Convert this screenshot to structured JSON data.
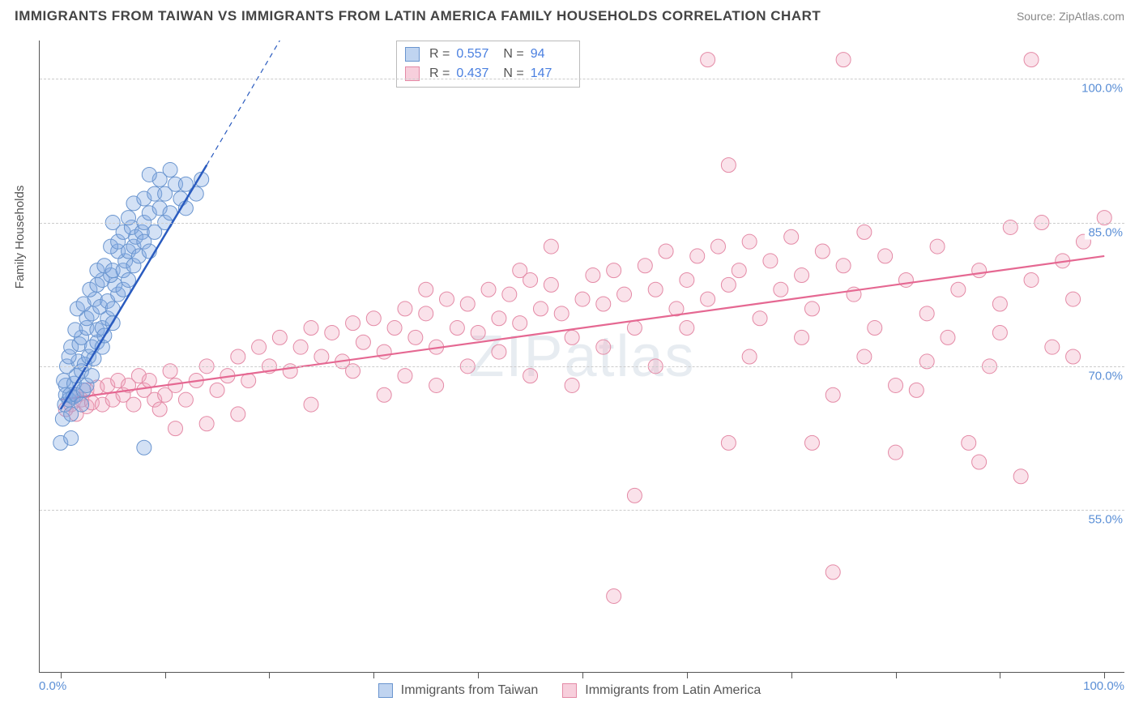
{
  "header": {
    "title": "IMMIGRANTS FROM TAIWAN VS IMMIGRANTS FROM LATIN AMERICA FAMILY HOUSEHOLDS CORRELATION CHART",
    "source_prefix": "Source: ",
    "source_name": "ZipAtlas.com"
  },
  "watermark": "ZIPatlas",
  "chart": {
    "type": "scatter-correlation",
    "y_axis_title": "Family Households",
    "x_domain": [
      -2,
      102
    ],
    "y_domain": [
      38,
      104
    ],
    "x_ticks": [
      0,
      10,
      20,
      30,
      40,
      50,
      60,
      70,
      80,
      90,
      100
    ],
    "x_tick_labels": {
      "min": "0.0%",
      "max": "100.0%"
    },
    "y_gridlines": [
      55.0,
      70.0,
      85.0,
      100.0
    ],
    "y_tick_labels": [
      "55.0%",
      "70.0%",
      "85.0%",
      "100.0%"
    ],
    "background_color": "#ffffff",
    "grid_color": "#cccccc",
    "axis_color": "#555555",
    "marker_radius": 9,
    "series": [
      {
        "id": "taiwan",
        "label": "Immigrants from Taiwan",
        "color_fill": "rgba(130,170,225,0.35)",
        "color_stroke": "#6a95cf",
        "trend_color": "#2a5bbf",
        "R": "0.557",
        "N": "94",
        "trend_solid_from": [
          0,
          65.5
        ],
        "trend_solid_to": [
          14,
          91
        ],
        "trend_dash_from": [
          14,
          91
        ],
        "trend_dash_to": [
          21,
          104
        ],
        "points": [
          [
            0.0,
            62.0
          ],
          [
            0.2,
            64.5
          ],
          [
            0.4,
            66.0
          ],
          [
            0.5,
            67.0
          ],
          [
            0.5,
            68.0
          ],
          [
            0.8,
            66.5
          ],
          [
            0.9,
            67.0
          ],
          [
            0.3,
            68.5
          ],
          [
            1.0,
            65.0
          ],
          [
            1.2,
            66.8
          ],
          [
            1.3,
            68.2
          ],
          [
            1.5,
            67.0
          ],
          [
            1.5,
            69.0
          ],
          [
            0.6,
            70.0
          ],
          [
            1.7,
            70.5
          ],
          [
            0.8,
            71.0
          ],
          [
            1.0,
            72.0
          ],
          [
            2.0,
            66.0
          ],
          [
            2.2,
            67.5
          ],
          [
            2.0,
            69.5
          ],
          [
            2.3,
            70.2
          ],
          [
            2.5,
            68.0
          ],
          [
            2.7,
            71.0
          ],
          [
            1.8,
            72.3
          ],
          [
            2.0,
            73.0
          ],
          [
            1.4,
            73.8
          ],
          [
            2.5,
            74.0
          ],
          [
            3.0,
            69.0
          ],
          [
            3.0,
            72.0
          ],
          [
            3.2,
            70.8
          ],
          [
            3.5,
            72.5
          ],
          [
            3.5,
            73.8
          ],
          [
            2.5,
            75.0
          ],
          [
            3.0,
            75.5
          ],
          [
            1.6,
            76.0
          ],
          [
            2.2,
            76.5
          ],
          [
            4.0,
            72.0
          ],
          [
            4.0,
            74.0
          ],
          [
            4.2,
            73.2
          ],
          [
            4.5,
            75.0
          ],
          [
            3.3,
            77.0
          ],
          [
            3.8,
            76.2
          ],
          [
            4.5,
            76.8
          ],
          [
            2.8,
            78.0
          ],
          [
            3.5,
            78.5
          ],
          [
            4.0,
            79.0
          ],
          [
            5.0,
            74.5
          ],
          [
            5.0,
            76.0
          ],
          [
            5.5,
            77.5
          ],
          [
            5.2,
            78.5
          ],
          [
            4.8,
            79.5
          ],
          [
            3.5,
            80.0
          ],
          [
            4.2,
            80.5
          ],
          [
            5.0,
            80.0
          ],
          [
            6.0,
            78.0
          ],
          [
            6.0,
            80.0
          ],
          [
            6.5,
            79.0
          ],
          [
            6.2,
            81.0
          ],
          [
            5.5,
            82.0
          ],
          [
            4.8,
            82.5
          ],
          [
            5.5,
            83.0
          ],
          [
            6.5,
            82.0
          ],
          [
            7.0,
            80.5
          ],
          [
            7.0,
            82.5
          ],
          [
            7.5,
            81.5
          ],
          [
            7.2,
            83.5
          ],
          [
            6.0,
            84.0
          ],
          [
            6.8,
            84.5
          ],
          [
            7.8,
            84.0
          ],
          [
            5.0,
            85.0
          ],
          [
            6.5,
            85.5
          ],
          [
            8.0,
            83.0
          ],
          [
            8.5,
            82.0
          ],
          [
            8.0,
            85.0
          ],
          [
            8.5,
            86.0
          ],
          [
            9.0,
            84.0
          ],
          [
            9.5,
            86.5
          ],
          [
            7.0,
            87.0
          ],
          [
            8.0,
            87.5
          ],
          [
            9.0,
            88.0
          ],
          [
            10.0,
            85.0
          ],
          [
            10.5,
            86.0
          ],
          [
            10.0,
            88.0
          ],
          [
            11.0,
            89.0
          ],
          [
            9.5,
            89.5
          ],
          [
            8.5,
            90.0
          ],
          [
            11.5,
            87.5
          ],
          [
            12.0,
            86.5
          ],
          [
            12.0,
            89.0
          ],
          [
            13.0,
            88.0
          ],
          [
            13.5,
            89.5
          ],
          [
            10.5,
            90.5
          ],
          [
            8.0,
            61.5
          ],
          [
            1.0,
            62.5
          ]
        ]
      },
      {
        "id": "latin",
        "label": "Immigrants from Latin America",
        "color_fill": "rgba(240,160,185,0.30)",
        "color_stroke": "#e48aa6",
        "trend_color": "#e56892",
        "R": "0.437",
        "N": "147",
        "trend_solid_from": [
          0,
          66.5
        ],
        "trend_solid_to": [
          100,
          81.5
        ],
        "points": [
          [
            0.5,
            65.5
          ],
          [
            1.0,
            66.0
          ],
          [
            1.5,
            65.0
          ],
          [
            2.0,
            66.5
          ],
          [
            2.5,
            65.8
          ],
          [
            3.0,
            66.2
          ],
          [
            1.5,
            67.0
          ],
          [
            2.5,
            67.5
          ],
          [
            4.0,
            66.0
          ],
          [
            3.5,
            67.8
          ],
          [
            5.0,
            66.5
          ],
          [
            4.5,
            68.0
          ],
          [
            6.0,
            67.0
          ],
          [
            5.5,
            68.5
          ],
          [
            7.0,
            66.0
          ],
          [
            6.5,
            68.0
          ],
          [
            8.0,
            67.5
          ],
          [
            7.5,
            69.0
          ],
          [
            9.0,
            66.5
          ],
          [
            8.5,
            68.5
          ],
          [
            10.0,
            67.0
          ],
          [
            9.5,
            65.5
          ],
          [
            11.0,
            68.0
          ],
          [
            10.5,
            69.5
          ],
          [
            12.0,
            66.5
          ],
          [
            13.0,
            68.5
          ],
          [
            14.0,
            70.0
          ],
          [
            15.0,
            67.5
          ],
          [
            16.0,
            69.0
          ],
          [
            17.0,
            71.0
          ],
          [
            18.0,
            68.5
          ],
          [
            19.0,
            72.0
          ],
          [
            20.0,
            70.0
          ],
          [
            21.0,
            73.0
          ],
          [
            22.0,
            69.5
          ],
          [
            23.0,
            72.0
          ],
          [
            24.0,
            74.0
          ],
          [
            25.0,
            71.0
          ],
          [
            26.0,
            73.5
          ],
          [
            27.0,
            70.5
          ],
          [
            28.0,
            74.5
          ],
          [
            29.0,
            72.5
          ],
          [
            30.0,
            75.0
          ],
          [
            31.0,
            71.5
          ],
          [
            32.0,
            74.0
          ],
          [
            33.0,
            76.0
          ],
          [
            34.0,
            73.0
          ],
          [
            35.0,
            75.5
          ],
          [
            36.0,
            72.0
          ],
          [
            37.0,
            77.0
          ],
          [
            38.0,
            74.0
          ],
          [
            39.0,
            76.5
          ],
          [
            40.0,
            73.5
          ],
          [
            41.0,
            78.0
          ],
          [
            42.0,
            75.0
          ],
          [
            43.0,
            77.5
          ],
          [
            44.0,
            74.5
          ],
          [
            45.0,
            79.0
          ],
          [
            46.0,
            76.0
          ],
          [
            47.0,
            78.5
          ],
          [
            48.0,
            75.5
          ],
          [
            49.0,
            68.0
          ],
          [
            50.0,
            77.0
          ],
          [
            51.0,
            79.5
          ],
          [
            52.0,
            76.5
          ],
          [
            53.0,
            80.0
          ],
          [
            54.0,
            77.5
          ],
          [
            55.0,
            74.0
          ],
          [
            56.0,
            80.5
          ],
          [
            57.0,
            78.0
          ],
          [
            58.0,
            82.0
          ],
          [
            59.0,
            76.0
          ],
          [
            60.0,
            79.0
          ],
          [
            61.0,
            81.5
          ],
          [
            62.0,
            77.0
          ],
          [
            63.0,
            82.5
          ],
          [
            64.0,
            78.5
          ],
          [
            65.0,
            80.0
          ],
          [
            66.0,
            83.0
          ],
          [
            67.0,
            75.0
          ],
          [
            68.0,
            81.0
          ],
          [
            69.0,
            78.0
          ],
          [
            70.0,
            83.5
          ],
          [
            71.0,
            79.5
          ],
          [
            72.0,
            76.0
          ],
          [
            73.0,
            82.0
          ],
          [
            74.0,
            67.0
          ],
          [
            75.0,
            80.5
          ],
          [
            76.0,
            77.5
          ],
          [
            77.0,
            84.0
          ],
          [
            78.0,
            74.0
          ],
          [
            79.0,
            81.5
          ],
          [
            80.0,
            68.0
          ],
          [
            81.0,
            79.0
          ],
          [
            82.0,
            67.5
          ],
          [
            83.0,
            75.5
          ],
          [
            84.0,
            82.5
          ],
          [
            85.0,
            73.0
          ],
          [
            86.0,
            78.0
          ],
          [
            87.0,
            62.0
          ],
          [
            88.0,
            80.0
          ],
          [
            89.0,
            70.0
          ],
          [
            90.0,
            76.5
          ],
          [
            91.0,
            84.5
          ],
          [
            92.0,
            58.5
          ],
          [
            93.0,
            79.0
          ],
          [
            94.0,
            85.0
          ],
          [
            95.0,
            72.0
          ],
          [
            96.0,
            81.0
          ],
          [
            97.0,
            77.0
          ],
          [
            98.0,
            83.0
          ],
          [
            100.0,
            85.5
          ],
          [
            62.0,
            102.0
          ],
          [
            75.0,
            102.0
          ],
          [
            93.0,
            102.0
          ],
          [
            64.0,
            91.0
          ],
          [
            47.0,
            82.5
          ],
          [
            55.0,
            56.5
          ],
          [
            53.0,
            46.0
          ],
          [
            74.0,
            48.5
          ],
          [
            64.0,
            62.0
          ],
          [
            72.0,
            62.0
          ],
          [
            80.0,
            61.0
          ],
          [
            88.0,
            60.0
          ],
          [
            11.0,
            63.5
          ],
          [
            14.0,
            64.0
          ],
          [
            17.0,
            65.0
          ],
          [
            24.0,
            66.0
          ],
          [
            31.0,
            67.0
          ],
          [
            33.0,
            69.0
          ],
          [
            36.0,
            68.0
          ],
          [
            39.0,
            70.0
          ],
          [
            42.0,
            71.5
          ],
          [
            45.0,
            69.0
          ],
          [
            49.0,
            73.0
          ],
          [
            52.0,
            72.0
          ],
          [
            57.0,
            70.0
          ],
          [
            60.0,
            74.0
          ],
          [
            66.0,
            71.0
          ],
          [
            71.0,
            73.0
          ],
          [
            77.0,
            71.0
          ],
          [
            83.0,
            70.5
          ],
          [
            90.0,
            73.5
          ],
          [
            97.0,
            71.0
          ],
          [
            28.0,
            69.5
          ],
          [
            35.0,
            78.0
          ],
          [
            44.0,
            80.0
          ]
        ]
      }
    ],
    "legend_stats": {
      "r_label": "R =",
      "n_label": "N ="
    }
  }
}
